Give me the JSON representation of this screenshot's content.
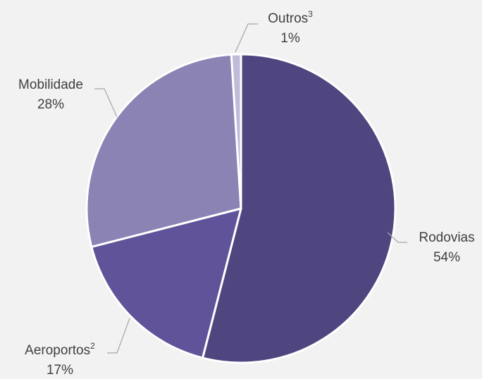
{
  "chart_data": {
    "type": "pie",
    "title": "",
    "slices": [
      {
        "label": "Rodovias",
        "sup": "",
        "value_label": "54%",
        "value": 54,
        "color": "#50467f"
      },
      {
        "label": "Aeroportos",
        "sup": "2",
        "value_label": "17%",
        "value": 17,
        "color": "#61539a"
      },
      {
        "label": "Mobilidade",
        "sup": "",
        "value_label": "28%",
        "value": 28,
        "color": "#8b83b4"
      },
      {
        "label": "Outros",
        "sup": "3",
        "value_label": "1%",
        "value": 1,
        "color": "#c0bbd9"
      }
    ],
    "legend": "none",
    "data_labels": "outside-with-leader-lines"
  }
}
